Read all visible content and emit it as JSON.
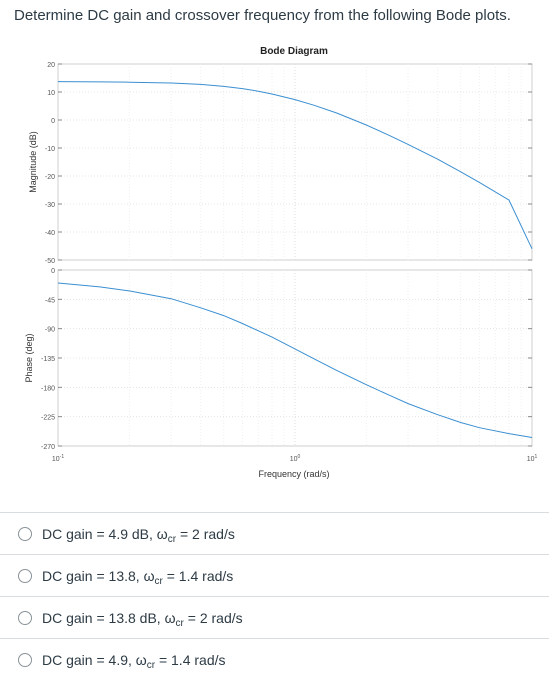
{
  "question": {
    "text": "Determine DC gain and crossover frequency from the following Bode plots."
  },
  "chart_data": {
    "type": "line",
    "title": "Bode Diagram",
    "xlabel": "Frequency  (rad/s)",
    "x_scale": "log",
    "xlim": [
      0.1,
      10
    ],
    "x_tick_labels": [
      {
        "value": 0.1,
        "base": "10",
        "exp": "-1"
      },
      {
        "value": 1,
        "base": "10",
        "exp": "0"
      },
      {
        "value": 10,
        "base": "10",
        "exp": "1"
      }
    ],
    "grid": true,
    "panels": [
      {
        "name": "magnitude",
        "ylabel": "Magnitude (dB)",
        "ylim": [
          -50,
          20
        ],
        "y_ticks": [
          20,
          10,
          0,
          -10,
          -20,
          -30,
          -40,
          -50
        ],
        "series": [
          {
            "color": "#3b8fd1",
            "x": [
              0.1,
              0.15,
              0.2,
              0.3,
              0.4,
              0.5,
              0.6,
              0.7,
              0.8,
              1.0,
              1.2,
              1.5,
              2.0,
              2.5,
              3.0,
              4.0,
              5.0,
              6.0,
              8.0,
              10.0
            ],
            "y": [
              13.7,
              13.6,
              13.5,
              13.2,
              12.7,
              12.0,
              11.2,
              10.3,
              9.3,
              7.3,
              5.3,
              2.5,
              -1.8,
              -5.5,
              -8.7,
              -14.0,
              -18.5,
              -22.3,
              -28.6,
              -46
            ]
          }
        ]
      },
      {
        "name": "phase",
        "ylabel": "Phase (deg)",
        "ylim": [
          -270,
          0
        ],
        "y_ticks": [
          0,
          -45,
          -90,
          -135,
          -180,
          -225,
          -270
        ],
        "series": [
          {
            "color": "#3b8fd1",
            "x": [
              0.1,
              0.15,
              0.2,
              0.3,
              0.4,
              0.5,
              0.6,
              0.8,
              1.0,
              1.2,
              1.5,
              2.0,
              2.5,
              3.0,
              4.0,
              5.0,
              6.0,
              8.0,
              10.0
            ],
            "y": [
              -20,
              -26,
              -32,
              -44,
              -58,
              -70,
              -82,
              -103,
              -121,
              -136,
              -154,
              -176,
              -192,
              -205,
              -222,
              -234,
              -242,
              -251,
              -257
            ]
          }
        ]
      }
    ]
  },
  "answers": [
    {
      "pre": "DC gain = 4.9 dB, ",
      "omega": "ω",
      "sub": "cr",
      "post": " = 2 rad/s"
    },
    {
      "pre": "DC gain = 13.8, ",
      "omega": "ω",
      "sub": "cr",
      "post": " = 1.4 rad/s"
    },
    {
      "pre": "DC gain = 13.8 dB, ",
      "omega": "ω",
      "sub": "cr",
      "post": " = 2 rad/s"
    },
    {
      "pre": "DC gain = 4.9, ",
      "omega": "ω",
      "sub": "cr",
      "post": " = 1.4 rad/s"
    }
  ]
}
